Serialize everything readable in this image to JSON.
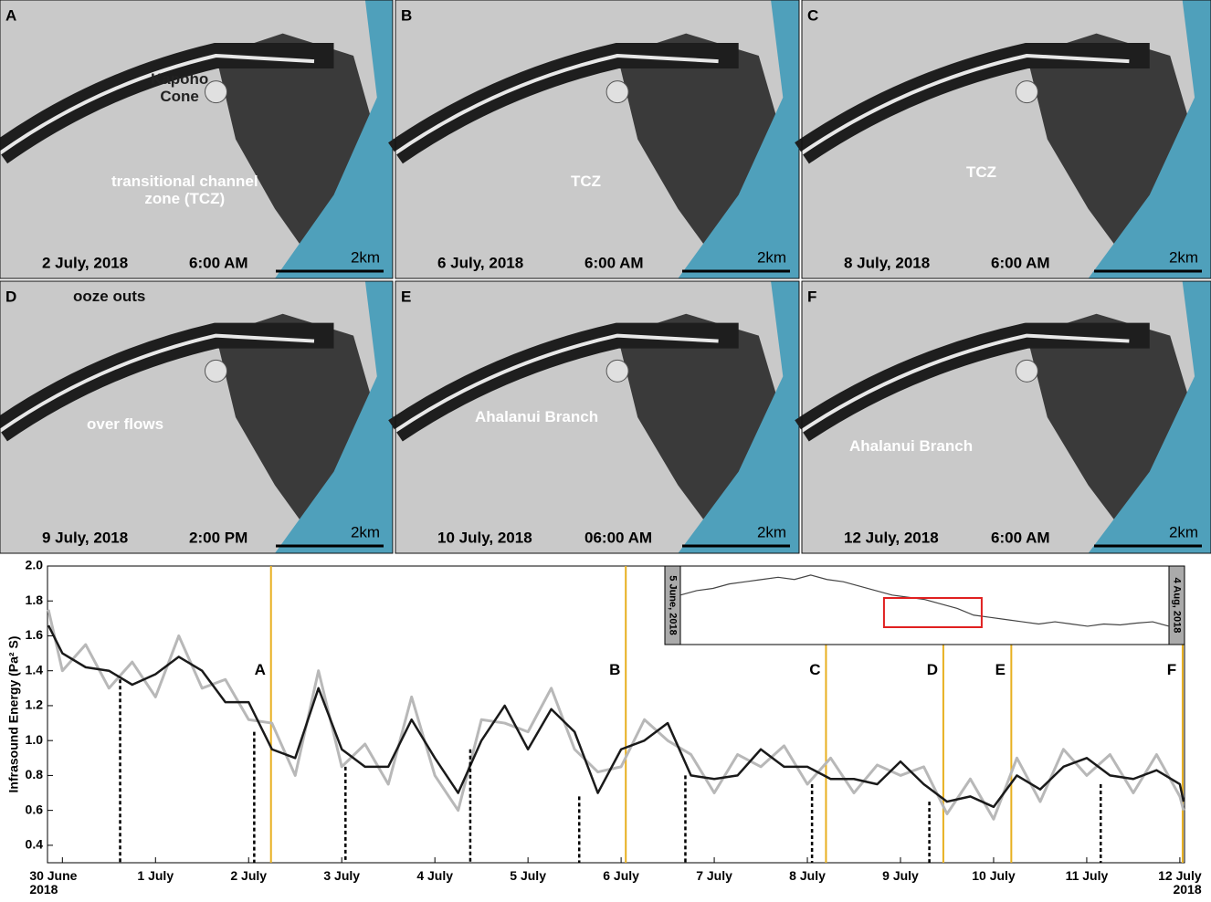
{
  "panels": [
    {
      "letter": "A",
      "date": "2 July, 2018",
      "time": "6:00 AM",
      "scale": "2km",
      "annotations": [
        "Kapoho\nCone",
        "transitional channel\nzone (TCZ)"
      ]
    },
    {
      "letter": "B",
      "date": "6 July, 2018",
      "time": "6:00  AM",
      "scale": "2km",
      "annotations": [
        "TCZ"
      ]
    },
    {
      "letter": "C",
      "date": "8 July, 2018",
      "time": "6:00 AM",
      "scale": "2km",
      "annotations": [
        "TCZ"
      ]
    },
    {
      "letter": "D",
      "date": "9 July, 2018",
      "time": "2:00 PM",
      "scale": "2km",
      "annotations": [
        "ooze outs",
        "over flows"
      ]
    },
    {
      "letter": "E",
      "date": "10 July, 2018",
      "time": "06:00 AM",
      "scale": "2km",
      "annotations": [
        "Ahalanui Branch"
      ]
    },
    {
      "letter": "F",
      "date": "12 July, 2018",
      "time": "6:00 AM",
      "scale": "2km",
      "annotations": [
        "Ahalanui Branch"
      ]
    }
  ],
  "chart_data": {
    "type": "line",
    "y_label": "Infrasound Energy (Pa² S)",
    "x": [
      -0.15,
      0,
      0.25,
      0.5,
      0.75,
      1,
      1.25,
      1.5,
      1.75,
      2,
      2.25,
      2.5,
      2.75,
      3,
      3.25,
      3.5,
      3.75,
      4,
      4.25,
      4.5,
      4.75,
      5,
      5.25,
      5.5,
      5.75,
      6,
      6.25,
      6.5,
      6.75,
      7,
      7.25,
      7.5,
      7.75,
      8,
      8.25,
      8.5,
      8.75,
      9,
      9.25,
      9.5,
      9.75,
      10,
      10.25,
      10.5,
      10.75,
      11,
      11.25,
      11.5,
      11.75,
      12,
      12.04
    ],
    "series": [
      {
        "color": "#b8b8b8",
        "values": [
          1.75,
          1.4,
          1.55,
          1.3,
          1.45,
          1.25,
          1.6,
          1.3,
          1.35,
          1.12,
          1.1,
          0.8,
          1.4,
          0.85,
          0.98,
          0.75,
          1.25,
          0.8,
          0.6,
          1.12,
          1.1,
          1.05,
          1.3,
          0.95,
          0.82,
          0.85,
          1.12,
          1.0,
          0.92,
          0.7,
          0.92,
          0.85,
          0.97,
          0.75,
          0.9,
          0.7,
          0.86,
          0.8,
          0.85,
          0.58,
          0.78,
          0.55,
          0.9,
          0.65,
          0.95,
          0.8,
          0.92,
          0.7,
          0.92,
          0.68,
          0.6
        ]
      },
      {
        "color": "#1a1a1a",
        "values": [
          1.66,
          1.5,
          1.42,
          1.4,
          1.32,
          1.38,
          1.48,
          1.4,
          1.22,
          1.22,
          0.95,
          0.9,
          1.3,
          0.95,
          0.85,
          0.85,
          1.12,
          0.9,
          0.7,
          1.0,
          1.2,
          0.95,
          1.18,
          1.05,
          0.7,
          0.95,
          1.0,
          1.1,
          0.8,
          0.78,
          0.8,
          0.95,
          0.85,
          0.85,
          0.78,
          0.78,
          0.75,
          0.88,
          0.75,
          0.65,
          0.68,
          0.62,
          0.8,
          0.72,
          0.85,
          0.9,
          0.8,
          0.78,
          0.83,
          0.75,
          0.65
        ]
      }
    ],
    "xlim": [
      -0.16,
      12.05
    ],
    "ylim": [
      0.3,
      2.0
    ],
    "xticks": [
      {
        "value": 0,
        "label": "30 June\n2018"
      },
      {
        "value": 1,
        "label": "1 July"
      },
      {
        "value": 2,
        "label": "2 July"
      },
      {
        "value": 3,
        "label": "3 July"
      },
      {
        "value": 4,
        "label": "4 July"
      },
      {
        "value": 5,
        "label": "5 July"
      },
      {
        "value": 6,
        "label": "6 July"
      },
      {
        "value": 7,
        "label": "7 July"
      },
      {
        "value": 8,
        "label": "8 July"
      },
      {
        "value": 9,
        "label": "9 July"
      },
      {
        "value": 10,
        "label": "10 July"
      },
      {
        "value": 11,
        "label": "11 July"
      },
      {
        "value": 12,
        "label": "12 July\n2018"
      }
    ],
    "yticks": [
      0.4,
      0.6,
      0.8,
      {
        "value": 1,
        "label": "1.0"
      },
      1.2,
      1.4,
      1.6,
      1.8,
      {
        "value": 2,
        "label": "2.0"
      }
    ],
    "snapshots": [
      {
        "x": 2.24,
        "label": "A"
      },
      {
        "x": 6.05,
        "label": "B"
      },
      {
        "x": 8.2,
        "label": "C"
      },
      {
        "x": 9.46,
        "label": "D"
      },
      {
        "x": 10.19,
        "label": "E"
      },
      {
        "x": 12.03,
        "label": "F"
      }
    ],
    "snapshot_color": "#e8b020",
    "events": [
      {
        "x": 0.62,
        "y": 1.35
      },
      {
        "x": 2.06,
        "y": 1.05
      },
      {
        "x": 3.04,
        "y": 0.85
      },
      {
        "x": 4.38,
        "y": 0.95
      },
      {
        "x": 5.55,
        "y": 0.68
      },
      {
        "x": 6.69,
        "y": 0.8
      },
      {
        "x": 8.05,
        "y": 0.75
      },
      {
        "x": 9.31,
        "y": 0.65
      },
      {
        "x": 11.15,
        "y": 0.75
      }
    ],
    "inset": {
      "start_label": "5 June, 2018",
      "end_label": "4 Aug, 2018",
      "x": [
        0,
        2,
        4,
        6,
        8,
        10,
        12,
        14,
        16,
        18,
        20,
        22,
        24,
        26,
        28,
        30,
        32,
        34,
        36,
        38,
        40,
        42,
        44,
        46,
        48,
        50,
        52,
        54,
        56,
        58,
        60
      ],
      "values": [
        1.45,
        1.55,
        1.6,
        1.7,
        1.75,
        1.8,
        1.85,
        1.8,
        1.9,
        1.8,
        1.75,
        1.65,
        1.55,
        1.45,
        1.4,
        1.35,
        1.25,
        1.15,
        1.0,
        0.95,
        0.9,
        0.85,
        0.8,
        0.85,
        0.8,
        0.75,
        0.8,
        0.78,
        0.82,
        0.85,
        0.75
      ],
      "color": "#444",
      "xlim": [
        0,
        60
      ],
      "ylim": [
        0.4,
        2.0
      ],
      "highlight": [
        25,
        37
      ],
      "highlight_color": "#e02020"
    }
  }
}
